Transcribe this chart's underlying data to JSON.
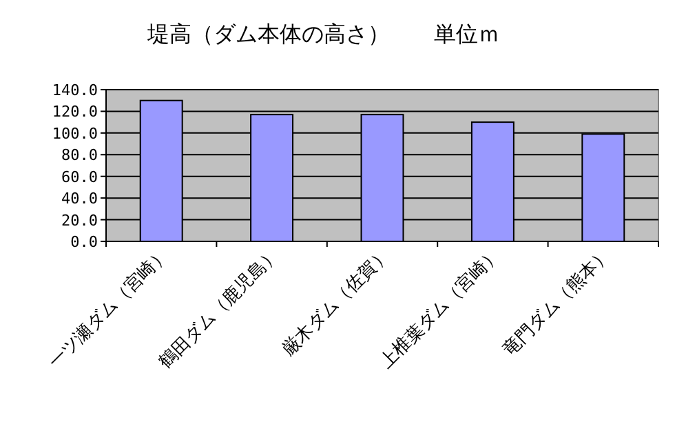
{
  "chart_data": {
    "type": "bar",
    "title": "堤高（ダム本体の高さ）　　単位ｍ",
    "categories": [
      "一ツ瀬ダム（宮崎）",
      "鶴田ダム（鹿児島）",
      "厳木ダム（佐賀）",
      "上椎葉ダム（宮崎）",
      "竜門ダム（熊本）"
    ],
    "values": [
      130,
      117,
      117,
      110,
      99
    ],
    "color": "#9999ff",
    "ylim": [
      0,
      140
    ],
    "yticks": [
      {
        "value": 0,
        "label": "0.0"
      },
      {
        "value": 20,
        "label": "20.0"
      },
      {
        "value": 40,
        "label": "40.0"
      },
      {
        "value": 60,
        "label": "60.0"
      },
      {
        "value": 80,
        "label": "80.0"
      },
      {
        "value": 100,
        "label": "100.0"
      },
      {
        "value": 120,
        "label": "120.0"
      },
      {
        "value": 140,
        "label": "140.0"
      }
    ],
    "grid": "y"
  }
}
